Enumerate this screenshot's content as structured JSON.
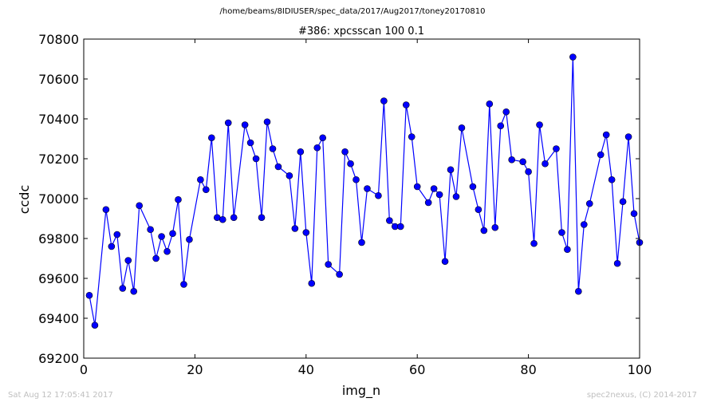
{
  "header": {
    "file_path": "/home/beams/8IDIUSER/spec_data/2017/Aug2017/toney20170810"
  },
  "footer": {
    "timestamp": "Sat Aug 12 17:05:41 2017",
    "credit": "spec2nexus, (C) 2014-2017"
  },
  "colors": {
    "series": "#0000ff",
    "axes": "#000000",
    "footer_text": "#bfbfbf"
  },
  "chart_data": {
    "type": "line",
    "title": "#386: xpcsscan 100 0.1",
    "xlabel": "img_n",
    "ylabel": "ccdc",
    "xlim": [
      0,
      100
    ],
    "ylim": [
      69200,
      70800
    ],
    "xticks": [
      0,
      20,
      40,
      60,
      80,
      100
    ],
    "yticks": [
      69200,
      69400,
      69600,
      69800,
      70000,
      70200,
      70400,
      70600,
      70800
    ],
    "grid": false,
    "marker": "circle",
    "series": [
      {
        "x": [
          1,
          2,
          4,
          5,
          6,
          7,
          8,
          9,
          10,
          12,
          13,
          14,
          15,
          16,
          17,
          18,
          19,
          21,
          22,
          23,
          24,
          25,
          26,
          27,
          29,
          30,
          31,
          32,
          33,
          34,
          35,
          37,
          38,
          39,
          40,
          41,
          42,
          43,
          44,
          46,
          47,
          48,
          49,
          50,
          51,
          53,
          54,
          55,
          56,
          57,
          58,
          59,
          60,
          62,
          63,
          64,
          65,
          66,
          67,
          68,
          70,
          71,
          72,
          73,
          74,
          75,
          76,
          77,
          79,
          80,
          81,
          82,
          83,
          85,
          86,
          87,
          88,
          89,
          90,
          91,
          93,
          94,
          95,
          96,
          97,
          98,
          99,
          100
        ],
        "y": [
          69515,
          69365,
          69945,
          69760,
          69820,
          69550,
          69690,
          69535,
          69965,
          69845,
          69700,
          69810,
          69735,
          69825,
          69995,
          69570,
          69795,
          70095,
          70045,
          70305,
          69905,
          69895,
          70380,
          69905,
          70370,
          70280,
          70200,
          69905,
          70385,
          70250,
          70160,
          70115,
          69850,
          70235,
          69830,
          69575,
          70255,
          70305,
          69670,
          69620,
          70235,
          70175,
          70095,
          69780,
          70050,
          70015,
          70490,
          69890,
          69860,
          69860,
          70470,
          70310,
          70060,
          69980,
          70050,
          70020,
          69685,
          70145,
          70010,
          70355,
          70060,
          69945,
          69840,
          70475,
          69855,
          70365,
          70435,
          70195,
          70185,
          70135,
          69775,
          70370,
          70175,
          70250,
          69830,
          69745,
          70710,
          69535,
          69870,
          69975,
          70220,
          70320,
          70095,
          69675,
          69985,
          70310,
          69925,
          69780
        ]
      }
    ]
  }
}
